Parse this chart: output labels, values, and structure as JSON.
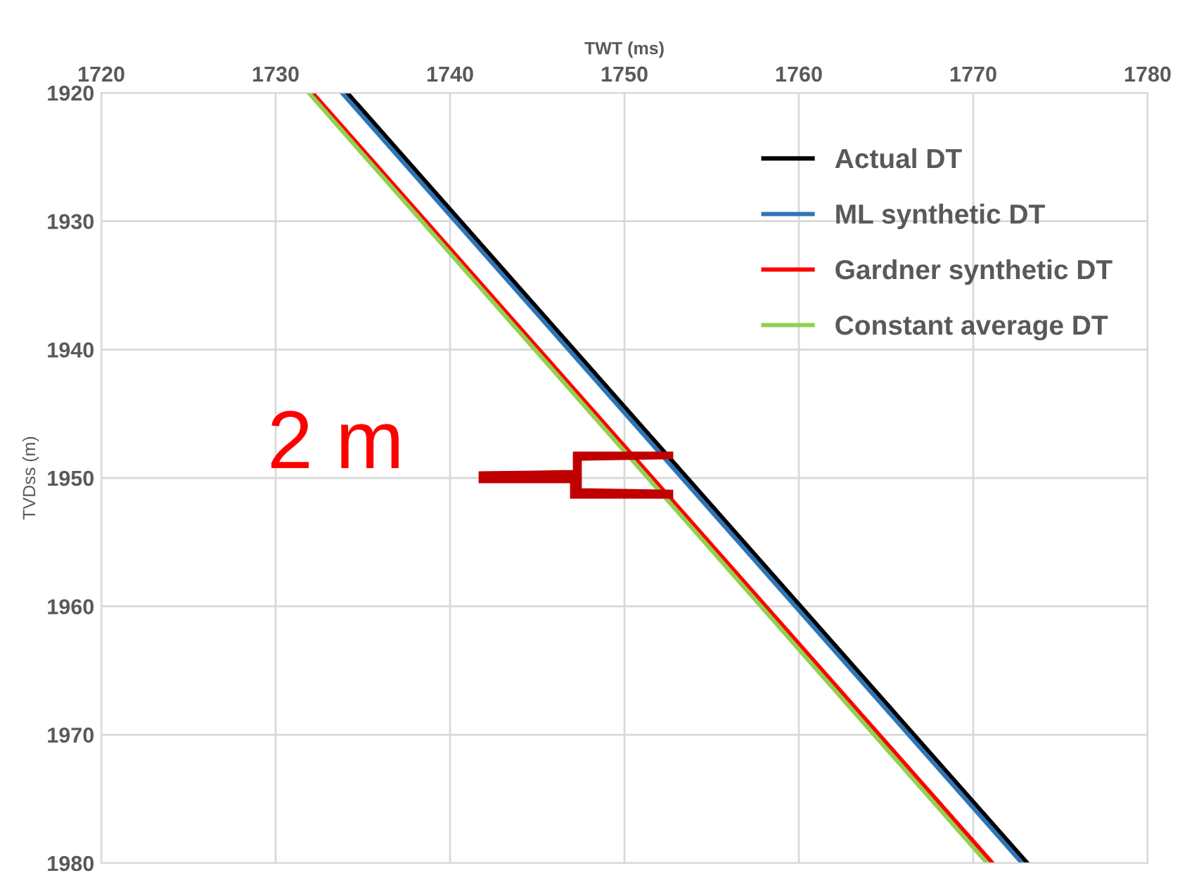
{
  "chart_data": {
    "type": "line",
    "xlabel": "TWT (ms)",
    "ylabel": "TVDss (m)",
    "xlim": [
      1720,
      1780
    ],
    "xticks": [
      1720,
      1730,
      1740,
      1750,
      1760,
      1770,
      1780
    ],
    "ylim": [
      1980,
      1920
    ],
    "yticks": [
      1920,
      1930,
      1940,
      1950,
      1960,
      1970,
      1980
    ],
    "grid": true,
    "legend": "top right",
    "marker": "none",
    "line_style": "solid",
    "series": [
      {
        "name": "Actual DT",
        "color": "#000000",
        "x": [
          1734.1,
          1773.1
        ],
        "values": [
          1920,
          1980
        ]
      },
      {
        "name": "ML synthetic DT",
        "color": "#2e75b6",
        "x": [
          1733.8,
          1772.8
        ],
        "values": [
          1920,
          1980
        ]
      },
      {
        "name": "Gardner synthetic DT",
        "color": "#ff0000",
        "x": [
          1732.1,
          1771.1
        ],
        "values": [
          1920,
          1980
        ]
      },
      {
        "name": "Constant average DT",
        "color": "#92d050",
        "x": [
          1731.9,
          1770.8
        ],
        "values": [
          1920,
          1980
        ]
      }
    ],
    "annotations": [
      "2 m"
    ]
  }
}
